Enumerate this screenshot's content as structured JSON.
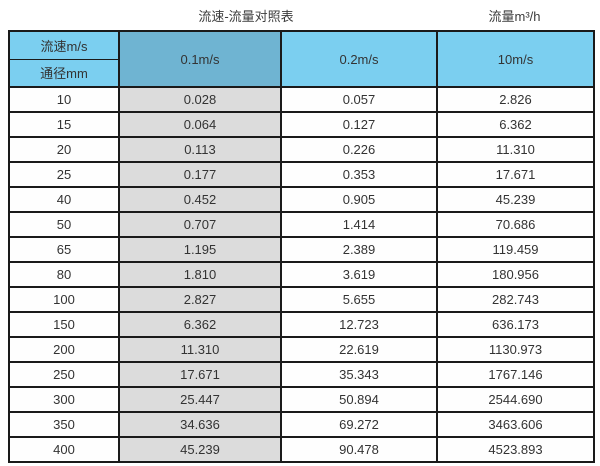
{
  "titles": {
    "left": "流速-流量对照表",
    "right": "流量m³/h"
  },
  "table": {
    "header": {
      "velocity_label": "流速m/s",
      "diameter_label": "通径mm",
      "velocity_columns": [
        "0.1m/s",
        "0.2m/s",
        "10m/s"
      ]
    },
    "rows": [
      [
        "10",
        "0.028",
        "0.057",
        "2.826"
      ],
      [
        "15",
        "0.064",
        "0.127",
        "6.362"
      ],
      [
        "20",
        "0.113",
        "0.226",
        "11.310"
      ],
      [
        "25",
        "0.177",
        "0.353",
        "17.671"
      ],
      [
        "40",
        "0.452",
        "0.905",
        "45.239"
      ],
      [
        "50",
        "0.707",
        "1.414",
        "70.686"
      ],
      [
        "65",
        "1.195",
        "2.389",
        "119.459"
      ],
      [
        "80",
        "1.810",
        "3.619",
        "180.956"
      ],
      [
        "100",
        "2.827",
        "5.655",
        "282.743"
      ],
      [
        "150",
        "6.362",
        "12.723",
        "636.173"
      ],
      [
        "200",
        "11.310",
        "22.619",
        "1130.973"
      ],
      [
        "250",
        "17.671",
        "35.343",
        "1767.146"
      ],
      [
        "300",
        "25.447",
        "50.894",
        "2544.690"
      ],
      [
        "350",
        "34.636",
        "69.272",
        "3463.606"
      ],
      [
        "400",
        "45.239",
        "90.478",
        "4523.893"
      ]
    ]
  },
  "colors": {
    "header_blue": "#7BCFF0",
    "header_blue_dark": "#6FB4D2",
    "column_gray": "#DCDCDC",
    "border": "#1a1a1a",
    "text": "#333333"
  },
  "chart_data": {
    "type": "table",
    "title": "流速-流量对照表",
    "unit_label": "流量m³/h",
    "columns": [
      "通径mm",
      "0.1m/s",
      "0.2m/s",
      "10m/s"
    ],
    "categories": [
      10,
      15,
      20,
      25,
      40,
      50,
      65,
      80,
      100,
      150,
      200,
      250,
      300,
      350,
      400
    ],
    "series": [
      {
        "name": "0.1m/s",
        "values": [
          0.028,
          0.064,
          0.113,
          0.177,
          0.452,
          0.707,
          1.195,
          1.81,
          2.827,
          6.362,
          11.31,
          17.671,
          25.447,
          34.636,
          45.239
        ]
      },
      {
        "name": "0.2m/s",
        "values": [
          0.057,
          0.127,
          0.226,
          0.353,
          0.905,
          1.414,
          2.389,
          3.619,
          5.655,
          12.723,
          22.619,
          35.343,
          50.894,
          69.272,
          90.478
        ]
      },
      {
        "name": "10m/s",
        "values": [
          2.826,
          6.362,
          11.31,
          17.671,
          45.239,
          70.686,
          119.459,
          180.956,
          282.743,
          636.173,
          1130.973,
          1767.146,
          2544.69,
          3463.606,
          4523.893
        ]
      }
    ]
  }
}
